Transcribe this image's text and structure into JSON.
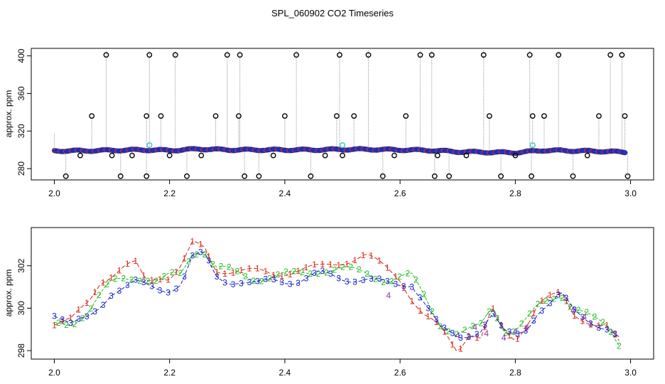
{
  "title": "SPL_060902  CO2 Timeseries",
  "colors": {
    "raw_line": "#9a9a9a",
    "raw_point": "#000000",
    "series_fill": "#2233cc",
    "series_edge": "#cc3322",
    "flag_point": "#44cccc",
    "s1": "#dd2211",
    "s2": "#22bb22",
    "s3": "#1122cc",
    "s4": "#8833aa"
  },
  "chart_data": [
    {
      "type": "scatter",
      "title": "SPL_060902  CO2 Timeseries",
      "xlabel": "",
      "ylabel": "approx. ppm",
      "xlim": [
        1.96,
        3.04
      ],
      "ylim": [
        268,
        408
      ],
      "xticks": [
        "2.0",
        "2.2",
        "2.4",
        "2.6",
        "2.8",
        "3.0"
      ],
      "yticks": [
        "280",
        "320",
        "360",
        "400"
      ],
      "baseline": {
        "x": [
          2.0,
          2.05,
          2.1,
          2.15,
          2.2,
          2.22,
          2.25,
          2.3,
          2.35,
          2.4,
          2.45,
          2.5,
          2.55,
          2.6,
          2.65,
          2.7,
          2.75,
          2.8,
          2.85,
          2.9,
          2.95,
          2.99
        ],
        "y": [
          299,
          299,
          299.5,
          300,
          299.5,
          299.8,
          301,
          300,
          300,
          300,
          300,
          300.5,
          300.5,
          300,
          299.5,
          298,
          297.5,
          297,
          299.5,
          299,
          298.5,
          297.5
        ]
      },
      "outliers": {
        "x": [
          2.02,
          2.045,
          2.065,
          2.09,
          2.1,
          2.115,
          2.135,
          2.16,
          2.16,
          2.165,
          2.185,
          2.2,
          2.21,
          2.23,
          2.255,
          2.28,
          2.3,
          2.32,
          2.322,
          2.33,
          2.355,
          2.38,
          2.4,
          2.42,
          2.445,
          2.47,
          2.49,
          2.495,
          2.5,
          2.52,
          2.545,
          2.57,
          2.59,
          2.61,
          2.635,
          2.655,
          2.66,
          2.665,
          2.685,
          2.715,
          2.745,
          2.755,
          2.775,
          2.8,
          2.825,
          2.828,
          2.83,
          2.85,
          2.875,
          2.9,
          2.925,
          2.945,
          2.965,
          2.985,
          2.99,
          2.995
        ],
        "y": [
          272,
          294,
          336,
          401,
          294,
          272,
          294,
          272,
          336,
          401,
          336,
          294,
          401,
          272,
          294,
          336,
          401,
          336,
          401,
          272,
          272,
          294,
          336,
          401,
          272,
          294,
          336,
          401,
          294,
          336,
          401,
          272,
          294,
          336,
          401,
          401,
          272,
          294,
          272,
          294,
          401,
          336,
          272,
          294,
          401,
          272,
          336,
          336,
          401,
          272,
          294,
          336,
          401,
          401,
          336,
          272
        ]
      },
      "flags": {
        "x": [
          2.165,
          2.5,
          2.83
        ],
        "y": [
          305,
          305,
          305
        ]
      }
    },
    {
      "type": "line",
      "title": "",
      "xlabel": "",
      "ylabel": "approx. ppm",
      "xlim": [
        1.96,
        3.04
      ],
      "ylim": [
        297.6,
        303.8
      ],
      "xticks": [
        "2.0",
        "2.2",
        "2.4",
        "2.6",
        "2.8",
        "3.0"
      ],
      "yticks": [
        "298",
        "300",
        "302"
      ],
      "x": [
        2.0,
        2.03,
        2.06,
        2.08,
        2.1,
        2.12,
        2.14,
        2.16,
        2.18,
        2.2,
        2.22,
        2.24,
        2.26,
        2.28,
        2.3,
        2.32,
        2.35,
        2.38,
        2.42,
        2.46,
        2.5,
        2.54,
        2.58,
        2.6,
        2.62,
        2.64,
        2.67,
        2.7,
        2.72,
        2.74,
        2.76,
        2.78,
        2.8,
        2.82,
        2.84,
        2.86,
        2.88,
        2.9,
        2.92,
        2.94,
        2.96,
        2.98
      ],
      "series": [
        {
          "name": "1",
          "values": [
            299.3,
            299.4,
            300.3,
            301.3,
            301.6,
            301.9,
            302.1,
            301.2,
            301.5,
            301.5,
            302.0,
            303.0,
            302.8,
            301.8,
            301.8,
            301.8,
            301.7,
            301.6,
            301.8,
            301.9,
            302.2,
            302.5,
            301.8,
            301.4,
            300.5,
            299.7,
            299.0,
            298.0,
            298.9,
            298.6,
            299.9,
            298.8,
            298.5,
            299.3,
            300.3,
            300.5,
            300.6,
            299.7,
            299.5,
            299.3,
            299.1,
            298.3
          ]
        },
        {
          "name": "2",
          "values": [
            299.2,
            299.3,
            299.9,
            300.6,
            301.2,
            301.4,
            301.5,
            301.4,
            301.2,
            301.5,
            301.6,
            302.7,
            302.7,
            301.9,
            301.8,
            301.6,
            301.4,
            301.5,
            301.6,
            301.8,
            301.8,
            301.7,
            301.3,
            301.4,
            301.5,
            300.7,
            299.3,
            298.7,
            298.9,
            299.2,
            300.2,
            299.0,
            298.9,
            299.4,
            300.1,
            300.5,
            300.7,
            300.0,
            299.7,
            299.4,
            299.2,
            298.4
          ]
        },
        {
          "name": "3",
          "values": [
            299.8,
            299.2,
            299.5,
            300.1,
            300.8,
            301.0,
            301.2,
            301.0,
            300.9,
            300.9,
            301.2,
            302.4,
            302.5,
            301.5,
            301.3,
            301.3,
            301.1,
            301.3,
            301.3,
            301.6,
            301.4,
            301.4,
            301.1,
            301.1,
            301.2,
            300.4,
            299.0,
            298.6,
            298.8,
            299.0,
            299.7,
            298.8,
            298.7,
            299.1,
            299.9,
            300.2,
            300.6,
            299.9,
            299.6,
            299.3,
            299.0,
            298.5
          ]
        }
      ],
      "extra_points": {
        "name": "4",
        "x": [
          2.58,
          2.7,
          2.73,
          2.75,
          2.78,
          2.8,
          2.82,
          2.9,
          2.92
        ],
        "values": [
          300.6,
          298.7,
          299.1,
          298.8,
          298.6,
          298.9,
          299.1,
          299.9,
          299.6
        ]
      }
    }
  ]
}
